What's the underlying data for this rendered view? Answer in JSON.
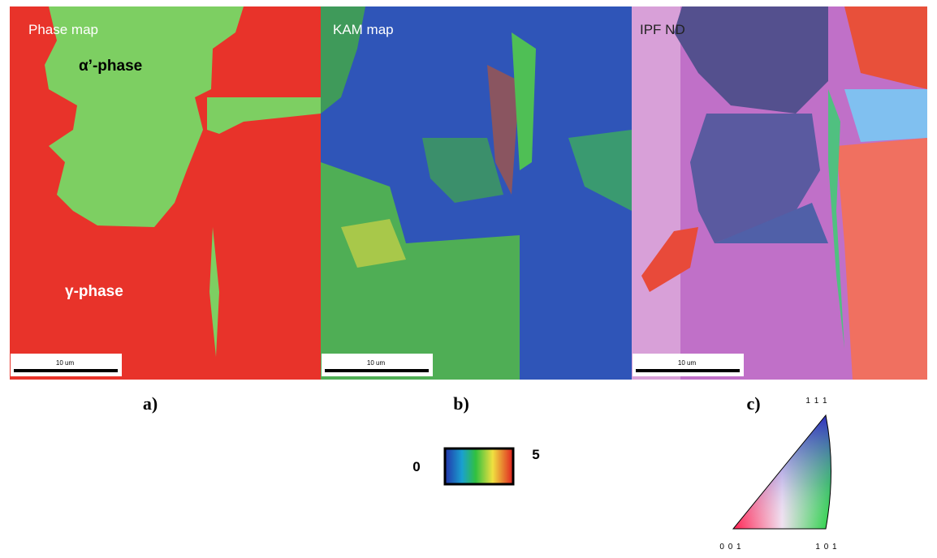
{
  "panels": [
    {
      "label": "a)",
      "title": "Phase map",
      "annotations": [
        "α’-phase",
        "γ-phase"
      ],
      "scale_bar": "10 um"
    },
    {
      "label": "b)",
      "title": "KAM map",
      "scale_bar": "10 um"
    },
    {
      "label": "c)",
      "title": "IPF ND",
      "scale_bar": "10 um"
    }
  ],
  "kam_colorbar": {
    "min": 0,
    "max": 5
  },
  "ipf_triangle": {
    "top": "1 1 1",
    "left": "0 0 1",
    "right": "1 0 1"
  }
}
